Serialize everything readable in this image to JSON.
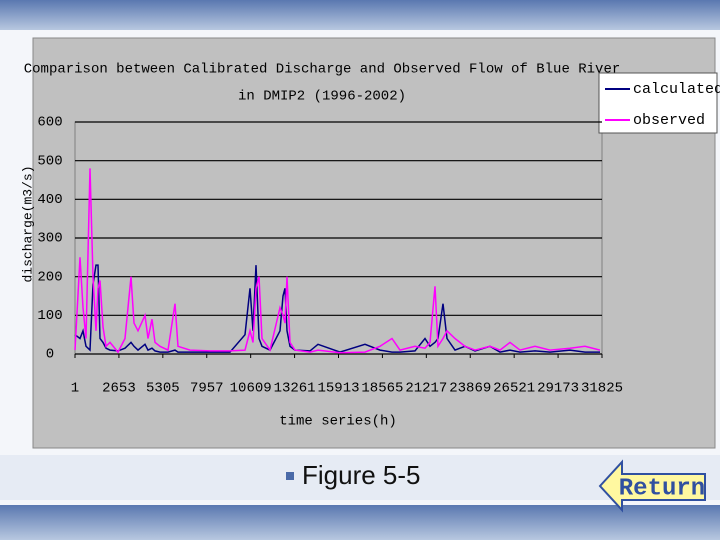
{
  "chart_data": {
    "type": "line",
    "title": "Comparison between Calibrated Discharge and Observed Flow of Blue River",
    "subtitle": "in DMIP2 (1996-2002)",
    "x_label": "time series(h)",
    "y_label": "discharge(m3/s)",
    "x": [
      1,
      303,
      484,
      665,
      907,
      1088,
      1269,
      1390,
      1511,
      1692,
      1873,
      2115,
      2598,
      3021,
      3383,
      3564,
      3806,
      4228,
      4410,
      4651,
      4832,
      5134,
      5617,
      6040,
      6221,
      6946,
      8154,
      9362,
      10267,
      10569,
      10750,
      10931,
      11112,
      11293,
      11776,
      12380,
      12561,
      12682,
      12803,
      12984,
      13286,
      14192,
      14675,
      16004,
      17513,
      18419,
      19144,
      19627,
      20533,
      21137,
      21439,
      21741,
      21922,
      22224,
      22465,
      22948,
      23552,
      24156,
      25062,
      25666,
      26270,
      26874,
      27780,
      28686,
      29894,
      30800,
      31706
    ],
    "series": [
      {
        "name": "calculated",
        "color": "#000080",
        "values": [
          50,
          40,
          60,
          20,
          10,
          180,
          230,
          230,
          40,
          30,
          15,
          10,
          8,
          15,
          30,
          20,
          10,
          25,
          10,
          15,
          8,
          5,
          5,
          10,
          5,
          5,
          5,
          5,
          50,
          170,
          60,
          230,
          40,
          20,
          10,
          60,
          150,
          170,
          60,
          20,
          10,
          8,
          25,
          5,
          25,
          10,
          5,
          5,
          8,
          40,
          20,
          30,
          40,
          130,
          40,
          10,
          20,
          8,
          20,
          5,
          10,
          5,
          8,
          5,
          10,
          5,
          5
        ]
      },
      {
        "name": "observed",
        "color": "#ff00ff",
        "values": [
          10,
          250,
          120,
          40,
          480,
          200,
          60,
          170,
          190,
          70,
          20,
          30,
          5,
          40,
          200,
          80,
          60,
          100,
          40,
          90,
          30,
          20,
          10,
          130,
          20,
          10,
          8,
          8,
          10,
          60,
          30,
          170,
          200,
          40,
          10,
          120,
          100,
          80,
          200,
          30,
          10,
          5,
          10,
          3,
          5,
          20,
          40,
          10,
          20,
          15,
          30,
          175,
          20,
          40,
          60,
          40,
          20,
          10,
          20,
          10,
          30,
          10,
          20,
          10,
          15,
          20,
          10
        ]
      }
    ],
    "xlim": [
      1,
      31825
    ],
    "xticks": [
      1,
      2653,
      5305,
      7957,
      10609,
      13261,
      15913,
      18565,
      21217,
      23869,
      26521,
      29173,
      31825
    ],
    "ylim": [
      0,
      600
    ],
    "yticks": [
      0,
      100,
      200,
      300,
      400,
      500,
      600
    ],
    "grid": true,
    "legend": "top-right"
  },
  "footer": {
    "caption": "Figure 5-5",
    "button": "Return"
  }
}
